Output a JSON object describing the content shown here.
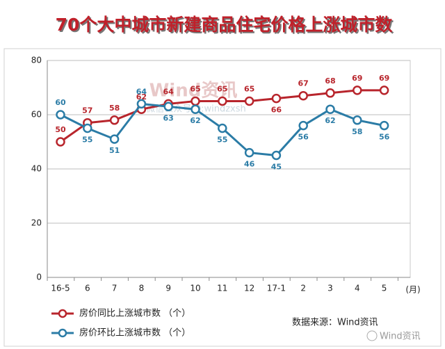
{
  "chart_data": {
    "type": "line",
    "title": "70个大中城市新建商品住宅价格上涨城市数",
    "categories": [
      "16-5",
      "6",
      "7",
      "8",
      "9",
      "10",
      "11",
      "12",
      "17-1",
      "2",
      "3",
      "4",
      "5"
    ],
    "x_unit": "(月)",
    "series": [
      {
        "name": "房价同比上涨城市数 （个）",
        "color": "#b8252c",
        "values": [
          50,
          57,
          58,
          62,
          64,
          65,
          65,
          65,
          66,
          67,
          68,
          69,
          69
        ]
      },
      {
        "name": "房价环比上涨城市数 （个）",
        "color": "#2b7ca6",
        "values": [
          60,
          55,
          51,
          64,
          63,
          62,
          55,
          46,
          45,
          56,
          62,
          58,
          56
        ]
      }
    ],
    "ylim": [
      0,
      80
    ],
    "yticks": [
      0,
      20,
      40,
      60,
      80
    ],
    "grid": true,
    "source": "数据来源：Wind资讯",
    "watermarks": [
      "Wind资讯",
      "微信公众号ID:windzxsh",
      "Wind资讯"
    ]
  }
}
